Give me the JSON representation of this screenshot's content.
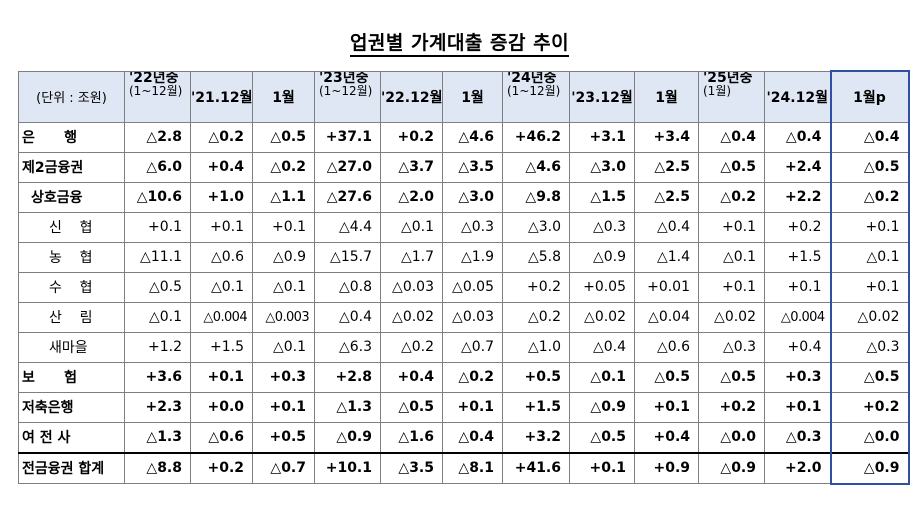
{
  "title": "업권별 가계대출 증감 추이",
  "unit_label": "(단위 : 조원)",
  "headers": [
    {
      "year": "'22년중",
      "sub": "(1~12월)",
      "c2": "'21.12월",
      "c3": "1월"
    },
    {
      "year": "'23년중",
      "sub": "(1~12월)",
      "c2": "'22.12월",
      "c3": "1월"
    },
    {
      "year": "'24년중",
      "sub": "(1~12월)",
      "c2": "'23.12월",
      "c3": "1월"
    },
    {
      "year": "'25년중",
      "sub": "(1월)",
      "c2": "'24.12월",
      "c3": "1월p"
    }
  ],
  "rows": [
    {
      "label": "은      행",
      "v": [
        "△2.8",
        "△0.2",
        "△0.5",
        "+37.1",
        "+0.2",
        "△4.6",
        "+46.2",
        "+3.1",
        "+3.4",
        "△0.4",
        "△0.4",
        "△0.4"
      ]
    },
    {
      "label": "제2금융권",
      "v": [
        "△6.0",
        "+0.4",
        "△0.2",
        "△27.0",
        "△3.7",
        "△3.5",
        "△4.6",
        "△3.0",
        "△2.5",
        "△0.5",
        "+2.4",
        "△0.5"
      ]
    },
    {
      "label": "상호금융",
      "v": [
        "△10.6",
        "+1.0",
        "△1.1",
        "△27.6",
        "△2.0",
        "△3.0",
        "△9.8",
        "△1.5",
        "△2.5",
        "△0.2",
        "+2.2",
        "△0.2"
      ]
    },
    {
      "label": "신    협",
      "v": [
        "+0.1",
        "+0.1",
        "+0.1",
        "△4.4",
        "△0.1",
        "△0.3",
        "△3.0",
        "△0.3",
        "△0.4",
        "+0.1",
        "+0.2",
        "+0.1"
      ]
    },
    {
      "label": "농    협",
      "v": [
        "△11.1",
        "△0.6",
        "△0.9",
        "△15.7",
        "△1.7",
        "△1.9",
        "△5.8",
        "△0.9",
        "△1.4",
        "△0.1",
        "+1.5",
        "△0.1"
      ]
    },
    {
      "label": "수    협",
      "v": [
        "△0.5",
        "△0.1",
        "△0.1",
        "△0.8",
        "△0.03",
        "△0.05",
        "+0.2",
        "+0.05",
        "+0.01",
        "+0.1",
        "+0.1",
        "+0.1"
      ]
    },
    {
      "label": "산    림",
      "v": [
        "△0.1",
        "△0.004",
        "△0.003",
        "△0.4",
        "△0.02",
        "△0.03",
        "△0.2",
        "△0.02",
        "△0.04",
        "△0.02",
        "△0.004",
        "△0.02"
      ]
    },
    {
      "label": "새마을",
      "v": [
        "+1.2",
        "+1.5",
        "△0.1",
        "△6.3",
        "△0.2",
        "△0.7",
        "△1.0",
        "△0.4",
        "△0.6",
        "△0.3",
        "+0.4",
        "△0.3"
      ]
    },
    {
      "label": "보      험",
      "v": [
        "+3.6",
        "+0.1",
        "+0.3",
        "+2.8",
        "+0.4",
        "△0.2",
        "+0.5",
        "△0.1",
        "△0.5",
        "△0.5",
        "+0.3",
        "△0.5"
      ]
    },
    {
      "label": "저축은행",
      "v": [
        "+2.3",
        "+0.0",
        "+0.1",
        "△1.3",
        "△0.5",
        "+0.1",
        "+1.5",
        "△0.9",
        "+0.1",
        "+0.2",
        "+0.1",
        "+0.2"
      ]
    },
    {
      "label": "여 전 사",
      "v": [
        "△1.3",
        "△0.6",
        "+0.5",
        "△0.9",
        "△1.6",
        "△0.4",
        "+3.2",
        "△0.5",
        "+0.4",
        "△0.0",
        "△0.3",
        "△0.0"
      ]
    },
    {
      "label": "전금융권 합계",
      "v": [
        "△8.8",
        "+0.2",
        "△0.7",
        "+10.1",
        "△3.5",
        "△8.1",
        "+41.6",
        "+0.1",
        "+0.9",
        "△0.9",
        "+2.0",
        "△0.9"
      ]
    }
  ]
}
